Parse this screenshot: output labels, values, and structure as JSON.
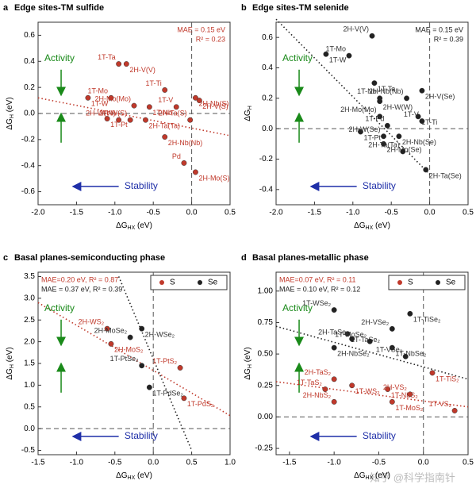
{
  "chart_data": [
    {
      "type": "scatter",
      "panel": "a",
      "title": "Edge sites-TM sulfide",
      "x_label": {
        "main": "ΔG",
        "sub": "HX",
        "unit": " (eV)"
      },
      "y_label": {
        "main": "ΔG",
        "sub": "H",
        "unit": " (eV)"
      },
      "xlim": [
        -2.0,
        0.5
      ],
      "xticks": [
        {
          "value": -2,
          "label": "-2.0"
        },
        {
          "value": -1.5,
          "label": "-1.5"
        },
        {
          "value": -1,
          "label": "-1.0"
        },
        {
          "value": -0.5,
          "label": "-0.5"
        },
        {
          "value": 0,
          "label": "0.0"
        },
        0.5
      ],
      "ylim": [
        -0.7,
        0.7
      ],
      "yticks": [
        -0.6,
        -0.4,
        -0.2,
        {
          "value": 0,
          "label": "0.0"
        },
        0.2,
        0.4,
        0.6
      ],
      "activity": "Activity",
      "stability": "Stability",
      "stats_corner": "upper right",
      "stats": [
        {
          "text": "MAE = 0.15 eV",
          "color": "#c0392b"
        },
        {
          "text": "R² = 0.23",
          "color": "#c0392b"
        }
      ],
      "series": [
        {
          "color": "#c0392b",
          "labels": [
            "1T-Ta",
            "2H-V(V)",
            "1T-Mo",
            "1T-W",
            "2H-Mo(Mo)",
            "1T-Nb",
            "1T-Ti",
            "2H-Nb(S)",
            "1T-V",
            "2H-V(S)",
            "2H-W(W)",
            "1T-Pt",
            "2H-W(S)",
            "2H-Ta(Ta)",
            "2H-Ta(S)",
            "2H-Nb(Nb)",
            "Pd",
            "2H-Mo(S)"
          ],
          "x": [
            -0.95,
            -0.85,
            -1.05,
            -1.35,
            -0.75,
            -0.55,
            -0.35,
            0.05,
            -0.2,
            0.1,
            -0.95,
            -1.1,
            -0.8,
            -0.6,
            -0.02,
            -0.35,
            -0.1,
            0.05
          ],
          "values": [
            0.38,
            0.38,
            0.12,
            0.12,
            0.06,
            0.05,
            0.18,
            0.12,
            0.05,
            0.1,
            -0.05,
            -0.04,
            -0.05,
            -0.05,
            -0.05,
            -0.18,
            -0.38,
            -0.45
          ]
        }
      ],
      "fits": [
        {
          "color": "#c0392b",
          "x": [
            -2.0,
            0.5
          ],
          "values": [
            0.12,
            -0.17
          ]
        }
      ]
    },
    {
      "type": "scatter",
      "panel": "b",
      "title": "Edge sites-TM selenide",
      "x_label": {
        "main": "ΔG",
        "sub": "HX",
        "unit": " (eV)"
      },
      "y_label": {
        "main": "ΔG",
        "sub": "H",
        "unit": ""
      },
      "xlim": [
        -2.0,
        0.5
      ],
      "xticks": [
        {
          "value": -2,
          "label": "-2.0"
        },
        {
          "value": -1.5,
          "label": "-1.5"
        },
        {
          "value": -1,
          "label": "-1.0"
        },
        {
          "value": -0.5,
          "label": "-0.5"
        },
        {
          "value": 0,
          "label": "0.0"
        },
        0.5
      ],
      "ylim": [
        -0.5,
        0.7
      ],
      "yticks": [
        -0.4,
        -0.2,
        {
          "value": 0,
          "label": "0.0"
        },
        0.2,
        0.4,
        0.6
      ],
      "activity": "Activity",
      "stability": "Stability",
      "stats_corner": "upper right",
      "stats": [
        {
          "text": "MAE = 0.15 eV",
          "color": "#222"
        },
        {
          "text": "R² = 0.39",
          "color": "#222"
        }
      ],
      "series": [
        {
          "color": "#222",
          "labels": [
            "2H-V(V)",
            "1T-W",
            "1T-Mo",
            "1T-Ta",
            "1T-Nb",
            "2H-W(W)",
            "2H-Nb(Nb)",
            "2H-V(Se)",
            "2H-Mo(Mo)",
            "1T-Ti",
            "1T-V",
            "1T-Pt",
            "1T-Pd",
            "2H-Nb(Se)",
            "2H-W(Se)",
            "2H-Mo(Se)",
            "2H-Ta(Ta)",
            "2H-Ta(Se)"
          ],
          "x": [
            -0.75,
            -1.35,
            -1.05,
            -0.72,
            -0.65,
            -0.65,
            -0.3,
            -0.1,
            -0.65,
            -0.15,
            -0.1,
            -0.9,
            -0.55,
            -0.4,
            -0.6,
            -0.6,
            -0.35,
            -0.05
          ],
          "values": [
            0.61,
            0.49,
            0.48,
            0.3,
            0.2,
            0.18,
            0.2,
            0.25,
            0.08,
            0.08,
            0.05,
            -0.02,
            0.02,
            -0.05,
            -0.05,
            -0.1,
            -0.15,
            -0.27
          ]
        }
      ],
      "fits": [
        {
          "color": "#222",
          "x": [
            -2.0,
            0.0
          ],
          "values": [
            0.72,
            -0.3
          ]
        }
      ]
    },
    {
      "type": "scatter",
      "panel": "c",
      "title": "Basal planes-semiconducting phase",
      "x_label": {
        "main": "ΔG",
        "sub": "HX",
        "unit": " (eV)"
      },
      "y_label": {
        "main": "ΔG",
        "sub": "H",
        "unit": " (eV)"
      },
      "xlim": [
        -1.5,
        1.0
      ],
      "xticks": [
        {
          "value": -1.5,
          "label": "-1.5"
        },
        {
          "value": -1,
          "label": "-1.0"
        },
        {
          "value": -0.5,
          "label": "-0.5"
        },
        {
          "value": 0,
          "label": "0.0"
        },
        0.5,
        {
          "value": 1,
          "label": "1.0"
        }
      ],
      "ylim": [
        -0.6,
        3.6
      ],
      "yticks": [
        -0.5,
        {
          "value": 0,
          "label": "0.0"
        },
        0.5,
        {
          "value": 1,
          "label": "1.0"
        },
        1.5,
        {
          "value": 2,
          "label": "2.0"
        },
        2.5,
        {
          "value": 3,
          "label": "3.0"
        },
        3.5
      ],
      "activity": "Activity",
      "stability": "Stability",
      "stats_corner": "upper left",
      "legend": "upper right",
      "stats": [
        {
          "text": "MAE=0.20 eV, R² = 0.87",
          "color": "#c0392b"
        },
        {
          "text": "MAE = 0.37 eV, R² = 0.39",
          "color": "#222"
        }
      ],
      "series": [
        {
          "name": "S",
          "color": "#c0392b",
          "labels": [
            "2H-WS₂",
            "2H-MoS₂",
            "1T-PtS₂",
            "1T-PdS₂"
          ],
          "x": [
            -0.6,
            -0.55,
            0.35,
            0.4
          ],
          "values": [
            2.3,
            1.95,
            1.4,
            0.7
          ]
        },
        {
          "name": "Se",
          "color": "#222",
          "labels": [
            "2H-MoSe₂",
            "2H-WSe₂",
            "1T-PtSe₂",
            "1T-PdSe₂"
          ],
          "x": [
            -0.3,
            -0.15,
            -0.15,
            -0.05
          ],
          "values": [
            2.1,
            2.3,
            1.45,
            0.95
          ]
        }
      ],
      "fits": [
        {
          "color": "#c0392b",
          "x": [
            -1.5,
            1.0
          ],
          "values": [
            2.9,
            0.3
          ]
        },
        {
          "color": "#222",
          "x": [
            -0.45,
            0.5
          ],
          "values": [
            3.5,
            -0.5
          ]
        }
      ]
    },
    {
      "type": "scatter",
      "panel": "d",
      "title": "Basal planes-metallic phase",
      "x_label": {
        "main": "ΔG",
        "sub": "HX",
        "unit": " (eV)"
      },
      "y_label": {
        "main": "ΔG",
        "sub": "H",
        "unit": " (eV)"
      },
      "xlim": [
        -1.65,
        0.5
      ],
      "xticks": [
        {
          "value": -1.5,
          "label": "-1.5"
        },
        {
          "value": -1,
          "label": "-1.0"
        },
        {
          "value": -0.5,
          "label": "-0.5"
        },
        {
          "value": 0,
          "label": "0.0"
        },
        0.5
      ],
      "ylim": [
        -0.3,
        1.15
      ],
      "yticks": [
        -0.25,
        {
          "value": 0,
          "label": "0.00"
        },
        0.25,
        {
          "value": 0.5,
          "label": "0.50"
        },
        0.75,
        {
          "value": 1,
          "label": "1.00"
        }
      ],
      "activity": "Activity",
      "stability": "Stability",
      "stats_corner": "upper left",
      "legend": "upper right",
      "stats": [
        {
          "text": "MAE=0.07 eV, R² = 0.11",
          "color": "#c0392b"
        },
        {
          "text": "MAE = 0.10 eV, R² = 0.12",
          "color": "#222"
        }
      ],
      "series": [
        {
          "name": "S",
          "color": "#c0392b",
          "labels": [
            "2H-TaS₂",
            "1T-WS₂",
            "1T-TaS₂",
            "1T-NbS₂",
            "2H-VS₂",
            "1T-TiS₂",
            "2H-NbS₂",
            "1T-MoS₂",
            "1T-VS₂"
          ],
          "x": [
            -1.0,
            -0.8,
            -1.1,
            -0.4,
            -0.15,
            0.1,
            -1.0,
            -0.35,
            0.35
          ],
          "values": [
            0.3,
            0.25,
            0.22,
            0.22,
            0.18,
            0.35,
            0.12,
            0.12,
            0.05
          ]
        },
        {
          "name": "Se",
          "color": "#222",
          "labels": [
            "1T-WSe₂",
            "1T-TiSe₂",
            "2H-VSe₂",
            "1T-TaSe₂",
            "2H-TaSe₂",
            "2H-NbSe₂",
            "1T-MoSe₂",
            "1T-NbSe₂",
            "1T-VSe₂"
          ],
          "x": [
            -1.0,
            -0.15,
            -0.35,
            -0.85,
            -0.8,
            -1.0,
            -0.6,
            -0.35,
            -0.2
          ],
          "values": [
            0.85,
            0.82,
            0.7,
            0.66,
            0.62,
            0.55,
            0.6,
            0.55,
            0.48
          ]
        }
      ],
      "fits": [
        {
          "color": "#222",
          "x": [
            -1.65,
            0.5
          ],
          "values": [
            0.72,
            0.3
          ]
        },
        {
          "color": "#c0392b",
          "x": [
            -1.65,
            0.5
          ],
          "values": [
            0.28,
            0.08
          ]
        }
      ]
    }
  ],
  "watermark": "知乎 @科学指南针"
}
